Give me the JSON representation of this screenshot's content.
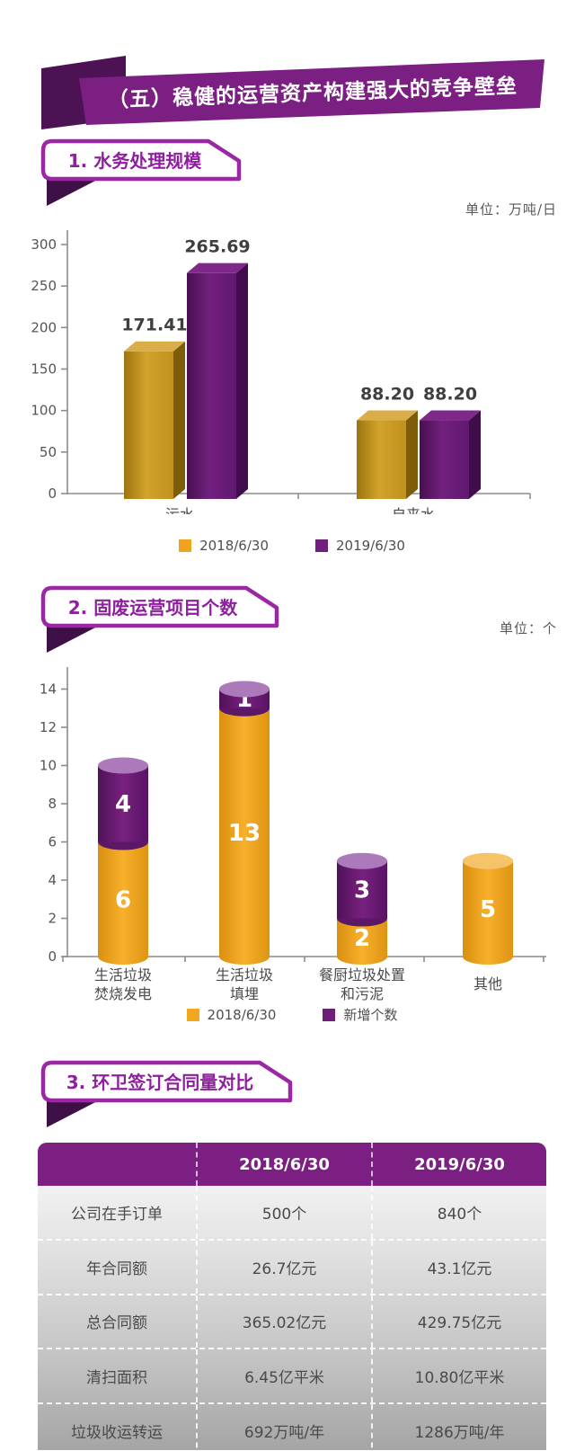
{
  "banner": {
    "title": "（五）稳健的运营资产构建强大的竞争壁垒"
  },
  "sections": [
    {
      "title": "1. 水务处理规模",
      "unit": "单位：万吨/日"
    },
    {
      "title": "2. 固废运营项目个数",
      "unit": "单位：个"
    },
    {
      "title": "3. 环卫签订合同量对比"
    }
  ],
  "chart_data": [
    {
      "type": "bar",
      "variant": "3d-column",
      "title": "水务处理规模",
      "unit": "万吨/日",
      "categories": [
        "污水",
        "自来水"
      ],
      "series": [
        {
          "name": "2018/6/30",
          "color": "#EFA41F",
          "values": [
            171.41,
            88.2
          ]
        },
        {
          "name": "2019/6/30",
          "color": "#701E7E",
          "values": [
            265.69,
            88.2
          ]
        }
      ],
      "data_labels": [
        [
          "171.41",
          "88.20"
        ],
        [
          "265.69",
          "88.20"
        ]
      ],
      "ylim": [
        0,
        300
      ],
      "yticks": [
        0,
        50,
        100,
        150,
        200,
        250,
        300
      ],
      "grid": false,
      "legend_position": "bottom"
    },
    {
      "type": "bar",
      "variant": "stacked-cylinder",
      "title": "固废运营项目个数",
      "unit": "个",
      "categories": [
        "生活垃圾\n焚烧发电",
        "生活垃圾\n填埋",
        "餐厨垃圾处置\n和污泥",
        "其他"
      ],
      "series": [
        {
          "name": "2018/6/30",
          "color": "#F2A71E",
          "values": [
            6,
            13,
            2,
            5
          ]
        },
        {
          "name": "新增个数",
          "color": "#6C1E79",
          "values": [
            4,
            1,
            3,
            0
          ]
        }
      ],
      "ylim": [
        0,
        14
      ],
      "yticks": [
        0,
        2,
        4,
        6,
        8,
        10,
        12,
        14
      ],
      "grid": false,
      "legend_position": "bottom"
    }
  ],
  "table": {
    "headers": [
      "",
      "2018/6/30",
      "2019/6/30"
    ],
    "rows": [
      [
        "公司在手订单",
        "500个",
        "840个"
      ],
      [
        "年合同额",
        "26.7亿元",
        "43.1亿元"
      ],
      [
        "总合同额",
        "365.02亿元",
        "429.75亿元"
      ],
      [
        "清扫面积",
        "6.45亿平米",
        "10.80亿平米"
      ],
      [
        "垃圾收运转运",
        "692万吨/年",
        "1286万吨/年"
      ]
    ]
  },
  "colors": {
    "banner_purple": "#7B2082",
    "banner_flap": "#4C1254",
    "flag_border": "#9B27A5",
    "flag_text": "#8E1F9E",
    "fold_dark": "#3E1047",
    "gold": "#EFA41F",
    "purple": "#7B2082",
    "lavender_top": "#AC79BB",
    "light_gold_top": "#F5C468",
    "axis_gray": "#8C8C8C",
    "table_header": "#7B2082"
  }
}
